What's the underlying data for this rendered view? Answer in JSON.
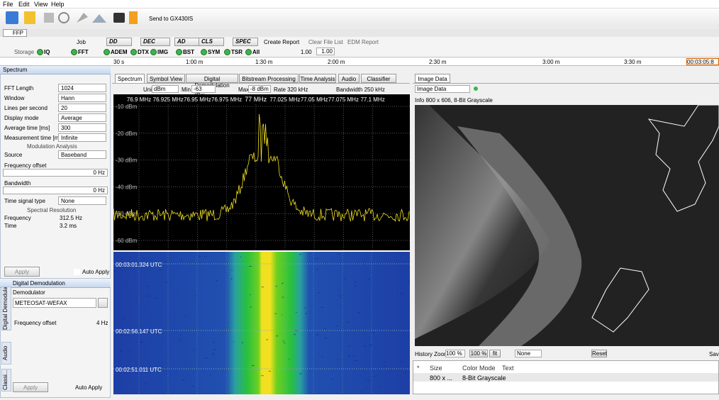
{
  "menu": [
    "File",
    "Edit",
    "View",
    "Help"
  ],
  "toolbar": {
    "send": "Send to GX430IS"
  },
  "tab": "FFP",
  "toolbar2": {
    "job": "Job",
    "modes": [
      "DD",
      "DEC",
      "AD",
      "CLS",
      "SPEC"
    ],
    "actions": [
      "Create Report",
      "Clear File List",
      "EDM Report"
    ]
  },
  "toolbar3": {
    "storage": "Storage",
    "radios": [
      "IQ",
      "FFT",
      "ADEM",
      "DTX",
      "IMG",
      "BST",
      "SYM",
      "TSR",
      "All"
    ],
    "speed1": "1.00",
    "speed2": "1.00"
  },
  "timeline": {
    "ticks": [
      "30 s",
      "1:00 m",
      "1:30 m",
      "2:00 m",
      "2:30 m",
      "3:00 m",
      "3:30 m"
    ],
    "current": "00:03:05:8"
  },
  "spectrum_panel": {
    "title": "Spectrum",
    "rows": [
      {
        "label": "FFT Length",
        "value": "1024"
      },
      {
        "label": "Window",
        "value": "Hann"
      },
      {
        "label": "Lines per second",
        "value": "20"
      },
      {
        "label": "Display mode",
        "value": "Average"
      },
      {
        "label": "Average time [ms]",
        "value": "300"
      },
      {
        "label": "Measurement time [ms]",
        "value": "Infinite"
      }
    ],
    "section1": "Modulation Analysis",
    "source": {
      "label": "Source",
      "value": "Baseband"
    },
    "freq_offset": {
      "label": "Frequency offset",
      "value": "0 Hz"
    },
    "bandwidth": {
      "label": "Bandwidth",
      "value": "0 Hz"
    },
    "time_signal": {
      "label": "Time signal type",
      "value": "None"
    },
    "section2": "Spectral Resolution",
    "resolution": [
      {
        "label": "Frequency",
        "value": "312.5 Hz"
      },
      {
        "label": "Time",
        "value": "3.2 ms"
      }
    ],
    "apply": "Apply",
    "auto_apply": "Auto Apply"
  },
  "demod_panel": {
    "title": "Digital Demodulation",
    "demodulator_label": "Demodulator",
    "demodulator": "METEOSAT-WEFAX",
    "freq_offset": {
      "label": "Frequency offset",
      "value": "4 Hz"
    },
    "side_tabs": [
      "Digital Demodulat.",
      "Audio",
      "Classi..."
    ],
    "apply": "Apply",
    "auto_apply": "Auto Apply"
  },
  "analysis": {
    "tabs": [
      "Spectrum",
      "Symbol View",
      "Digital Demodulation",
      "Bitstream Processing",
      "Time Analysis",
      "Audio",
      "Classifier"
    ],
    "unit_label": "Unit",
    "unit": "dBm",
    "min_label": "Min",
    "min": "-63 dBm",
    "max_label": "Max",
    "max": "-8 dBm",
    "rate": "Rate 320 kHz",
    "bandwidth": "Bandwidth 250 kHz",
    "freq_labels": [
      "76.9 MHz",
      "76.925 MHz",
      "76.95 MHz",
      "76.975 MHz",
      "77 MHz",
      "77.025 MHz",
      "77.05 MHz",
      "77.075 MHz",
      "77.1 MHz"
    ],
    "level_labels": [
      "-10 dBm",
      "-20 dBm",
      "-30 dBm",
      "-40 dBm",
      "-50 dBm",
      "-60 dBm"
    ],
    "time_labels": [
      "00:03:01.324 UTC",
      "00:02:56.147 UTC",
      "00:02:51.011 UTC"
    ]
  },
  "image_panel": {
    "tab": "Image Data",
    "source": "Image Data",
    "info": "Info 800 x 606, 8-Bit Grayscale",
    "history_zoom": "History Zoom",
    "zoom1": "100 %",
    "zoom2": "100 %",
    "fit": "fit",
    "filter": "None",
    "reset": "Reset",
    "save": "Save",
    "table": {
      "header": [
        "*",
        "Size",
        "Color Mode",
        "Text"
      ],
      "rows": [
        [
          "800 x ...",
          "8-Bit Grayscale"
        ]
      ]
    }
  }
}
